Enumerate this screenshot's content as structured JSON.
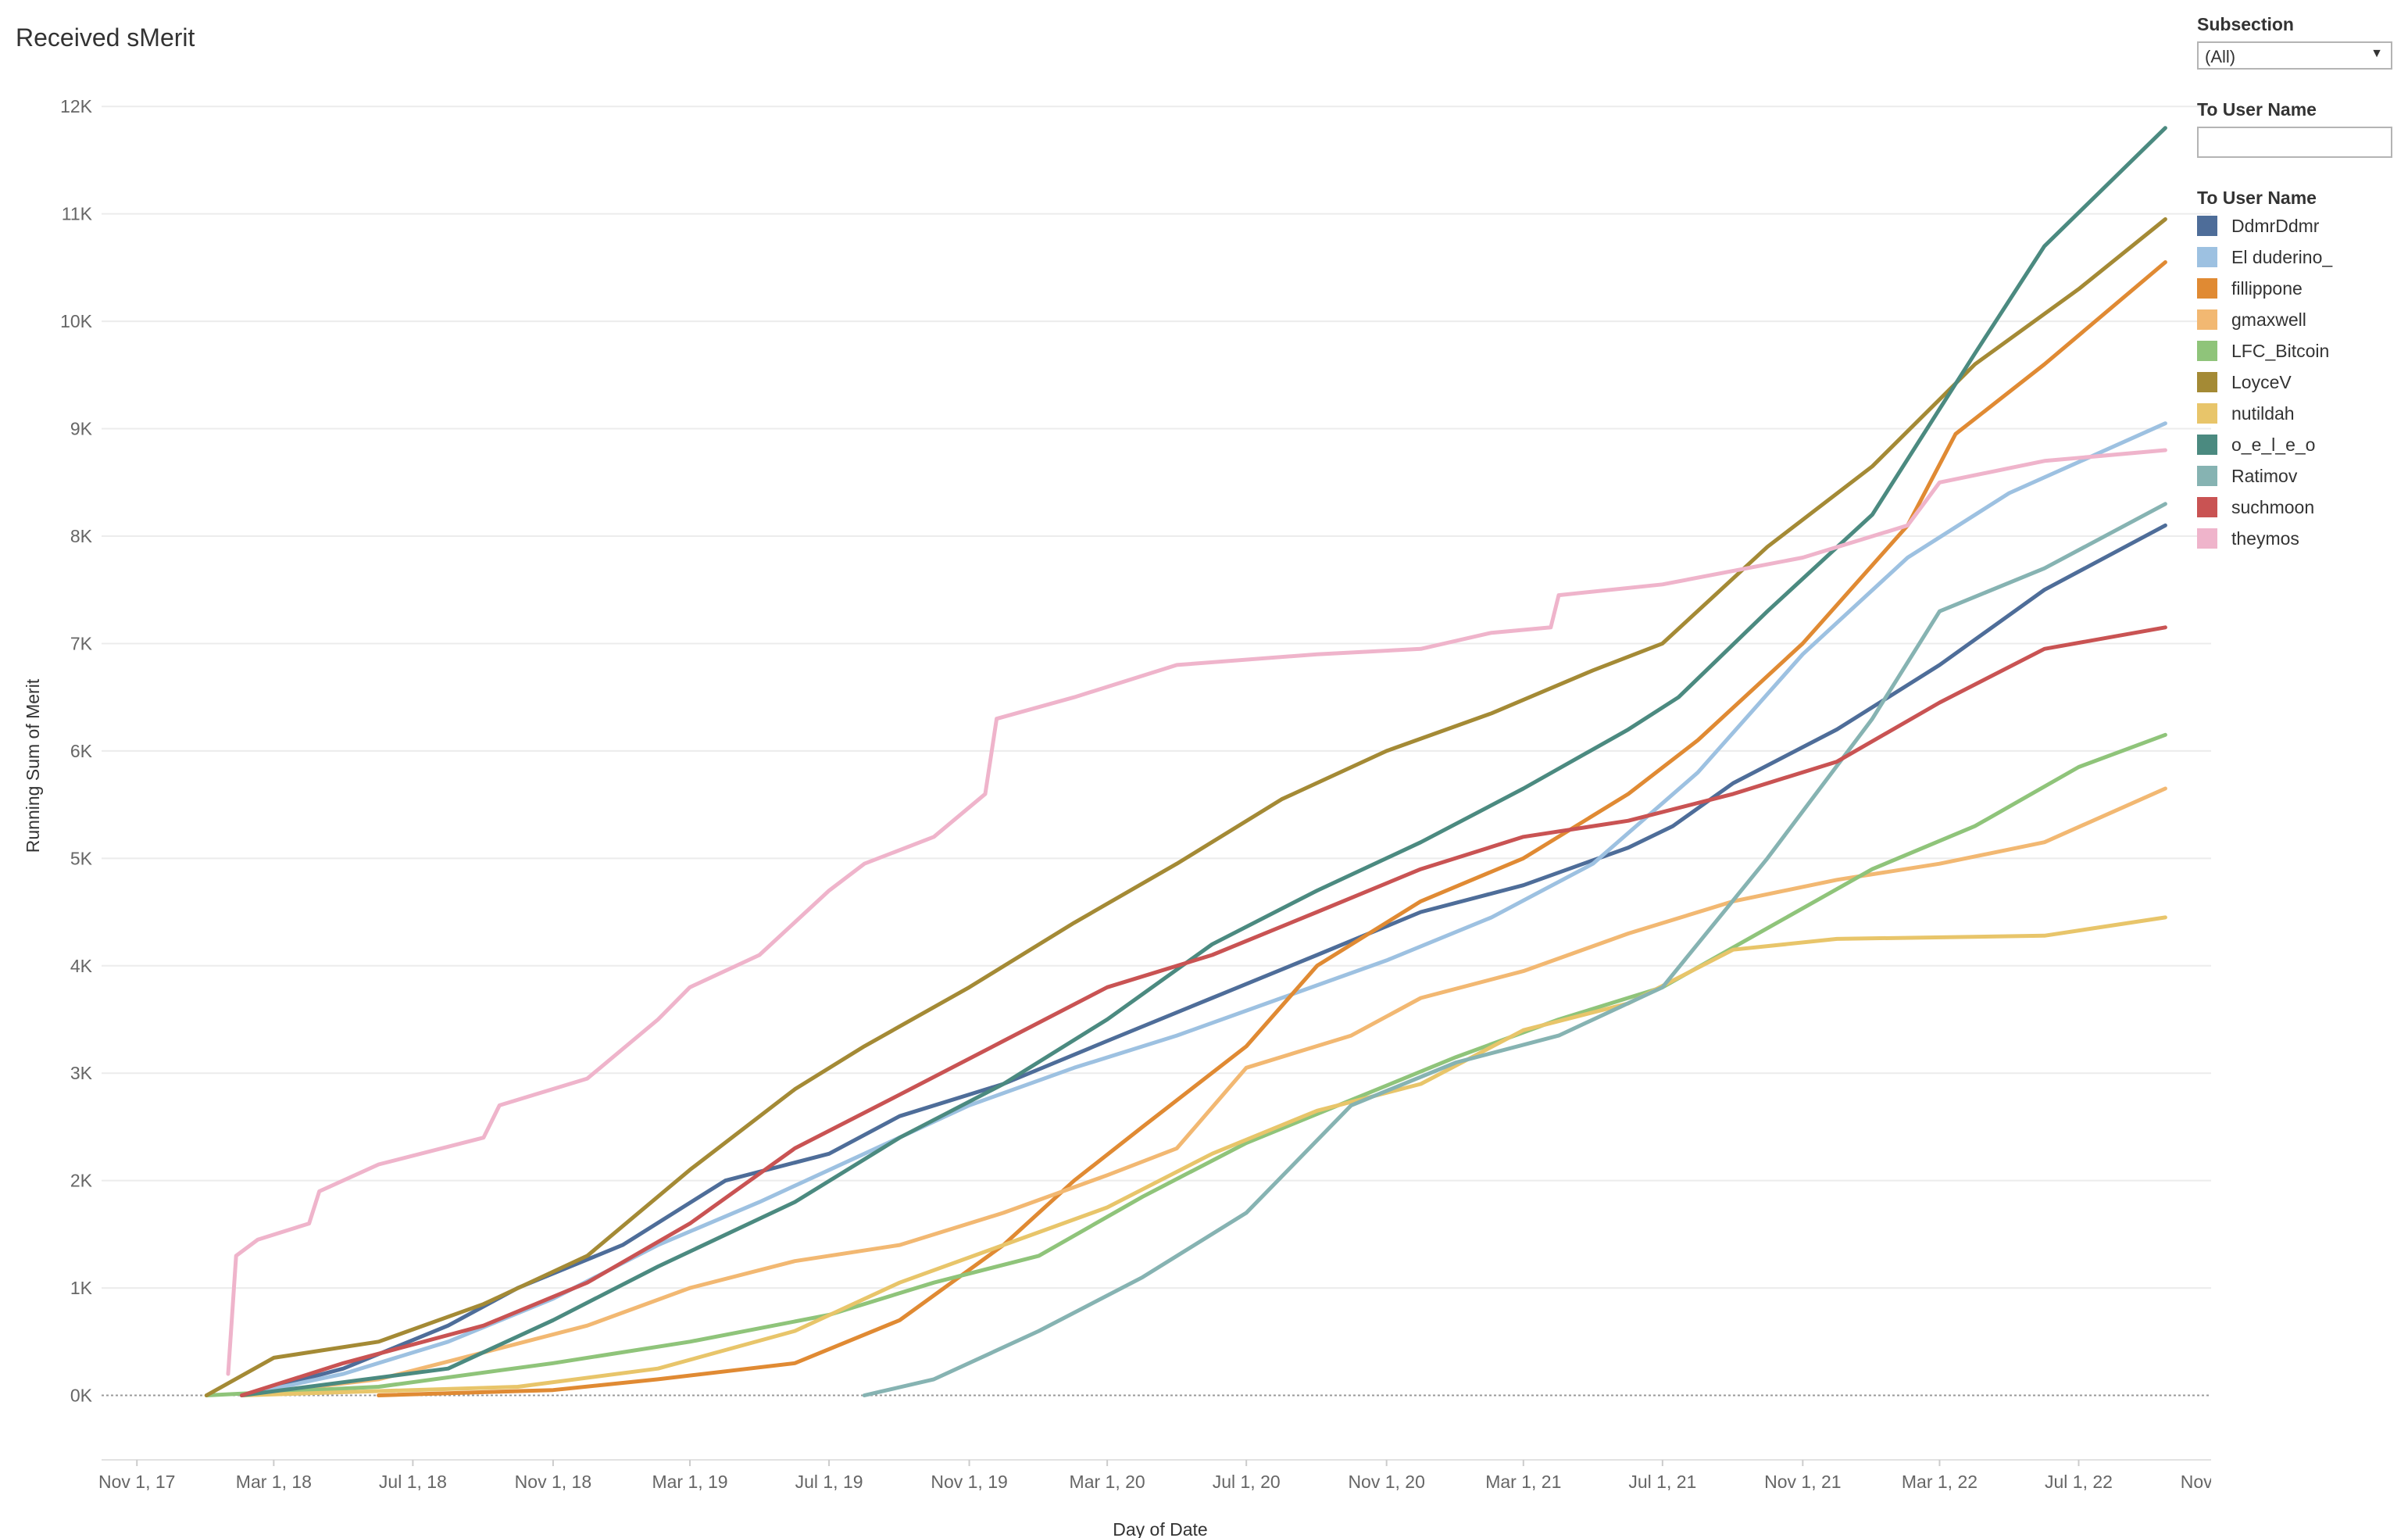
{
  "title": "Received sMerit",
  "filters": {
    "subsection_label": "Subsection",
    "subsection_value": "(All)",
    "user_filter_label": "To User Name",
    "user_filter_value": ""
  },
  "legend_title": "To User Name",
  "chart_data": {
    "type": "line",
    "xlabel": "Day of Date",
    "ylabel": "Running Sum of Merit",
    "xlim": [
      "2017-10-01",
      "2022-11-01"
    ],
    "ylim": [
      -600,
      12300
    ],
    "x_ticks": [
      {
        "date": "2017-11-01",
        "label": "Nov 1, 17"
      },
      {
        "date": "2018-03-01",
        "label": "Mar 1, 18"
      },
      {
        "date": "2018-07-01",
        "label": "Jul 1, 18"
      },
      {
        "date": "2018-11-01",
        "label": "Nov 1, 18"
      },
      {
        "date": "2019-03-01",
        "label": "Mar 1, 19"
      },
      {
        "date": "2019-07-01",
        "label": "Jul 1, 19"
      },
      {
        "date": "2019-11-01",
        "label": "Nov 1, 19"
      },
      {
        "date": "2020-03-01",
        "label": "Mar 1, 20"
      },
      {
        "date": "2020-07-01",
        "label": "Jul 1, 20"
      },
      {
        "date": "2020-11-01",
        "label": "Nov 1, 20"
      },
      {
        "date": "2021-03-01",
        "label": "Mar 1, 21"
      },
      {
        "date": "2021-07-01",
        "label": "Jul 1, 21"
      },
      {
        "date": "2021-11-01",
        "label": "Nov 1, 21"
      },
      {
        "date": "2022-03-01",
        "label": "Mar 1, 22"
      },
      {
        "date": "2022-07-01",
        "label": "Jul 1, 22"
      },
      {
        "date": "2022-11-01",
        "label": "Nov 1, 22"
      }
    ],
    "y_ticks": [
      {
        "value": 0,
        "label": "0K"
      },
      {
        "value": 1000,
        "label": "1K"
      },
      {
        "value": 2000,
        "label": "2K"
      },
      {
        "value": 3000,
        "label": "3K"
      },
      {
        "value": 4000,
        "label": "4K"
      },
      {
        "value": 5000,
        "label": "5K"
      },
      {
        "value": 6000,
        "label": "6K"
      },
      {
        "value": 7000,
        "label": "7K"
      },
      {
        "value": 8000,
        "label": "8K"
      },
      {
        "value": 9000,
        "label": "9K"
      },
      {
        "value": 10000,
        "label": "10K"
      },
      {
        "value": 11000,
        "label": "11K"
      },
      {
        "value": 12000,
        "label": "12K"
      }
    ],
    "gridlines": "horizontal",
    "legend_position": "right",
    "series": [
      {
        "name": "DdmrDdmr",
        "color": "#4e6d99",
        "points": [
          [
            "2018-02-01",
            0
          ],
          [
            "2018-05-01",
            250
          ],
          [
            "2018-08-01",
            650
          ],
          [
            "2018-10-01",
            1000
          ],
          [
            "2019-01-01",
            1400
          ],
          [
            "2019-04-01",
            2000
          ],
          [
            "2019-07-01",
            2250
          ],
          [
            "2019-09-01",
            2600
          ],
          [
            "2019-12-01",
            2900
          ],
          [
            "2020-03-01",
            3300
          ],
          [
            "2020-06-01",
            3700
          ],
          [
            "2020-09-01",
            4100
          ],
          [
            "2020-12-01",
            4500
          ],
          [
            "2021-03-01",
            4750
          ],
          [
            "2021-06-01",
            5100
          ],
          [
            "2021-07-10",
            5300
          ],
          [
            "2021-09-01",
            5700
          ],
          [
            "2021-12-01",
            6200
          ],
          [
            "2022-03-01",
            6800
          ],
          [
            "2022-06-01",
            7500
          ],
          [
            "2022-09-15",
            8100
          ]
        ]
      },
      {
        "name": "El duderino_",
        "color": "#9dc1e1",
        "points": [
          [
            "2018-02-01",
            0
          ],
          [
            "2018-05-01",
            200
          ],
          [
            "2018-08-01",
            500
          ],
          [
            "2018-11-01",
            900
          ],
          [
            "2019-02-01",
            1400
          ],
          [
            "2019-05-01",
            1800
          ],
          [
            "2019-08-01",
            2250
          ],
          [
            "2019-11-01",
            2700
          ],
          [
            "2020-02-01",
            3050
          ],
          [
            "2020-05-01",
            3350
          ],
          [
            "2020-08-01",
            3700
          ],
          [
            "2020-11-01",
            4050
          ],
          [
            "2021-02-01",
            4450
          ],
          [
            "2021-05-01",
            4950
          ],
          [
            "2021-08-01",
            5800
          ],
          [
            "2021-11-01",
            6900
          ],
          [
            "2022-02-01",
            7800
          ],
          [
            "2022-05-01",
            8400
          ],
          [
            "2022-09-15",
            9050
          ]
        ]
      },
      {
        "name": "fillippone",
        "color": "#e08a33",
        "points": [
          [
            "2018-06-01",
            0
          ],
          [
            "2018-11-01",
            50
          ],
          [
            "2019-02-01",
            150
          ],
          [
            "2019-06-01",
            300
          ],
          [
            "2019-09-01",
            700
          ],
          [
            "2019-12-01",
            1400
          ],
          [
            "2020-02-01",
            2000
          ],
          [
            "2020-04-01",
            2500
          ],
          [
            "2020-07-01",
            3250
          ],
          [
            "2020-09-01",
            4000
          ],
          [
            "2020-12-01",
            4600
          ],
          [
            "2021-03-01",
            5000
          ],
          [
            "2021-06-01",
            5600
          ],
          [
            "2021-08-01",
            6100
          ],
          [
            "2021-11-01",
            7000
          ],
          [
            "2022-02-01",
            8100
          ],
          [
            "2022-03-15",
            8950
          ],
          [
            "2022-06-01",
            9600
          ],
          [
            "2022-09-15",
            10550
          ]
        ]
      },
      {
        "name": "gmaxwell",
        "color": "#f2b872",
        "points": [
          [
            "2018-02-01",
            0
          ],
          [
            "2018-06-01",
            150
          ],
          [
            "2018-09-01",
            400
          ],
          [
            "2018-12-01",
            650
          ],
          [
            "2019-03-01",
            1000
          ],
          [
            "2019-06-01",
            1250
          ],
          [
            "2019-09-01",
            1400
          ],
          [
            "2019-12-01",
            1700
          ],
          [
            "2020-03-01",
            2050
          ],
          [
            "2020-05-01",
            2300
          ],
          [
            "2020-07-01",
            3050
          ],
          [
            "2020-10-01",
            3350
          ],
          [
            "2020-12-01",
            3700
          ],
          [
            "2021-03-01",
            3950
          ],
          [
            "2021-06-01",
            4300
          ],
          [
            "2021-09-01",
            4600
          ],
          [
            "2021-12-01",
            4800
          ],
          [
            "2022-03-01",
            4950
          ],
          [
            "2022-06-01",
            5150
          ],
          [
            "2022-09-15",
            5650
          ]
        ]
      },
      {
        "name": "LFC_Bitcoin",
        "color": "#8fc47a",
        "points": [
          [
            "2018-01-01",
            0
          ],
          [
            "2018-06-01",
            80
          ],
          [
            "2018-11-01",
            300
          ],
          [
            "2019-03-01",
            500
          ],
          [
            "2019-07-01",
            750
          ],
          [
            "2019-10-01",
            1050
          ],
          [
            "2020-01-01",
            1300
          ],
          [
            "2020-04-01",
            1850
          ],
          [
            "2020-07-01",
            2350
          ],
          [
            "2020-10-01",
            2750
          ],
          [
            "2021-01-01",
            3150
          ],
          [
            "2021-04-01",
            3500
          ],
          [
            "2021-07-01",
            3800
          ],
          [
            "2021-10-01",
            4350
          ],
          [
            "2022-01-01",
            4900
          ],
          [
            "2022-04-01",
            5300
          ],
          [
            "2022-07-01",
            5850
          ],
          [
            "2022-09-15",
            6150
          ]
        ]
      },
      {
        "name": "LoyceV",
        "color": "#a48a35",
        "points": [
          [
            "2018-01-01",
            0
          ],
          [
            "2018-03-01",
            350
          ],
          [
            "2018-06-01",
            500
          ],
          [
            "2018-09-01",
            850
          ],
          [
            "2018-12-01",
            1300
          ],
          [
            "2019-03-01",
            2100
          ],
          [
            "2019-06-01",
            2850
          ],
          [
            "2019-08-01",
            3250
          ],
          [
            "2019-11-01",
            3800
          ],
          [
            "2020-02-01",
            4400
          ],
          [
            "2020-05-01",
            4950
          ],
          [
            "2020-08-01",
            5550
          ],
          [
            "2020-11-01",
            6000
          ],
          [
            "2021-02-01",
            6350
          ],
          [
            "2021-05-01",
            6750
          ],
          [
            "2021-07-01",
            7000
          ],
          [
            "2021-10-01",
            7900
          ],
          [
            "2022-01-01",
            8650
          ],
          [
            "2022-04-01",
            9600
          ],
          [
            "2022-07-01",
            10300
          ],
          [
            "2022-09-15",
            10950
          ]
        ]
      },
      {
        "name": "nutildah",
        "color": "#e8c56a",
        "points": [
          [
            "2018-02-01",
            0
          ],
          [
            "2018-10-01",
            80
          ],
          [
            "2019-02-01",
            250
          ],
          [
            "2019-06-01",
            600
          ],
          [
            "2019-09-01",
            1050
          ],
          [
            "2019-12-01",
            1400
          ],
          [
            "2020-03-01",
            1750
          ],
          [
            "2020-06-01",
            2250
          ],
          [
            "2020-09-01",
            2650
          ],
          [
            "2020-12-01",
            2900
          ],
          [
            "2021-03-01",
            3400
          ],
          [
            "2021-06-01",
            3650
          ],
          [
            "2021-09-01",
            4150
          ],
          [
            "2021-12-01",
            4250
          ],
          [
            "2022-06-01",
            4280
          ],
          [
            "2022-09-15",
            4450
          ]
        ]
      },
      {
        "name": "o_e_l_e_o",
        "color": "#4b8a80",
        "points": [
          [
            "2018-02-01",
            0
          ],
          [
            "2018-08-01",
            250
          ],
          [
            "2018-11-01",
            700
          ],
          [
            "2019-02-01",
            1200
          ],
          [
            "2019-06-01",
            1800
          ],
          [
            "2019-09-01",
            2400
          ],
          [
            "2019-12-01",
            2900
          ],
          [
            "2020-03-01",
            3500
          ],
          [
            "2020-06-01",
            4200
          ],
          [
            "2020-09-01",
            4700
          ],
          [
            "2020-12-01",
            5150
          ],
          [
            "2021-03-01",
            5650
          ],
          [
            "2021-06-01",
            6200
          ],
          [
            "2021-07-15",
            6500
          ],
          [
            "2021-10-01",
            7300
          ],
          [
            "2022-01-01",
            8200
          ],
          [
            "2022-04-01",
            9700
          ],
          [
            "2022-06-01",
            10700
          ],
          [
            "2022-09-15",
            11800
          ]
        ]
      },
      {
        "name": "Ratimov",
        "color": "#86b3b2",
        "points": [
          [
            "2019-08-01",
            0
          ],
          [
            "2019-10-01",
            150
          ],
          [
            "2020-01-01",
            600
          ],
          [
            "2020-04-01",
            1100
          ],
          [
            "2020-07-01",
            1700
          ],
          [
            "2020-10-01",
            2700
          ],
          [
            "2021-01-01",
            3100
          ],
          [
            "2021-04-01",
            3350
          ],
          [
            "2021-07-01",
            3800
          ],
          [
            "2021-10-01",
            5000
          ],
          [
            "2022-01-01",
            6300
          ],
          [
            "2022-03-01",
            7300
          ],
          [
            "2022-06-01",
            7700
          ],
          [
            "2022-09-15",
            8300
          ]
        ]
      },
      {
        "name": "suchmoon",
        "color": "#c95353",
        "points": [
          [
            "2018-02-01",
            0
          ],
          [
            "2018-05-01",
            300
          ],
          [
            "2018-09-01",
            650
          ],
          [
            "2018-12-01",
            1050
          ],
          [
            "2019-03-01",
            1600
          ],
          [
            "2019-06-01",
            2300
          ],
          [
            "2019-09-01",
            2800
          ],
          [
            "2019-12-01",
            3300
          ],
          [
            "2020-03-01",
            3800
          ],
          [
            "2020-06-01",
            4100
          ],
          [
            "2020-09-01",
            4500
          ],
          [
            "2020-12-01",
            4900
          ],
          [
            "2021-03-01",
            5200
          ],
          [
            "2021-06-01",
            5350
          ],
          [
            "2021-09-01",
            5600
          ],
          [
            "2021-12-01",
            5900
          ],
          [
            "2022-03-01",
            6450
          ],
          [
            "2022-06-01",
            6950
          ],
          [
            "2022-09-15",
            7150
          ]
        ]
      },
      {
        "name": "theymos",
        "color": "#efb4cb",
        "points": [
          [
            "2018-01-20",
            200
          ],
          [
            "2018-01-27",
            1300
          ],
          [
            "2018-02-15",
            1450
          ],
          [
            "2018-04-01",
            1600
          ],
          [
            "2018-04-10",
            1900
          ],
          [
            "2018-06-01",
            2150
          ],
          [
            "2018-09-01",
            2400
          ],
          [
            "2018-09-15",
            2700
          ],
          [
            "2018-12-01",
            2950
          ],
          [
            "2019-02-01",
            3500
          ],
          [
            "2019-03-01",
            3800
          ],
          [
            "2019-05-01",
            4100
          ],
          [
            "2019-07-01",
            4700
          ],
          [
            "2019-08-01",
            4950
          ],
          [
            "2019-10-01",
            5200
          ],
          [
            "2019-11-15",
            5600
          ],
          [
            "2019-11-25",
            6300
          ],
          [
            "2020-02-01",
            6500
          ],
          [
            "2020-05-01",
            6800
          ],
          [
            "2020-09-01",
            6900
          ],
          [
            "2020-12-01",
            6950
          ],
          [
            "2021-02-01",
            7100
          ],
          [
            "2021-03-25",
            7150
          ],
          [
            "2021-04-01",
            7450
          ],
          [
            "2021-07-01",
            7550
          ],
          [
            "2021-11-01",
            7800
          ],
          [
            "2022-02-01",
            8100
          ],
          [
            "2022-03-01",
            8500
          ],
          [
            "2022-06-01",
            8700
          ],
          [
            "2022-09-15",
            8800
          ]
        ]
      }
    ]
  }
}
